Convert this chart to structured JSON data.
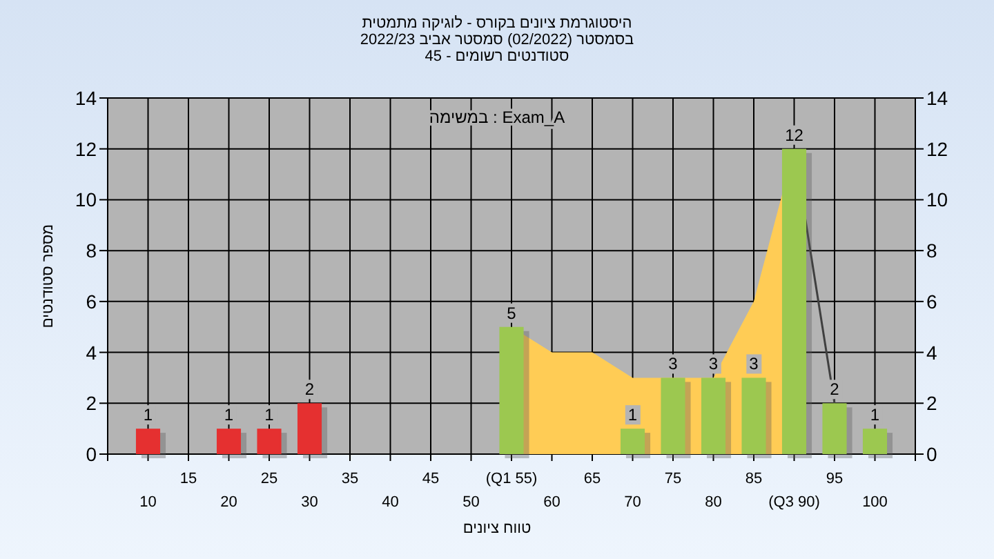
{
  "chart_data": {
    "type": "bar",
    "title": "היסטוגרמת ציונים בקורס - לוגיקה מתמטית",
    "subtitle": "בסמסטר  (02/2022)  סמסטר אביב 2022/23\nסטודנטים רשומים - 45",
    "xlabel": "טווח ציונים",
    "ylabel": "מספר סטודנטים",
    "annotations": [
      "במשימה : Exam_A"
    ],
    "categories": [
      "10",
      "15",
      "20",
      "25",
      "30",
      "35",
      "40",
      "45",
      "50",
      "(Q1 55)",
      "60",
      "65",
      "70",
      "75",
      "80",
      "85",
      "(Q3 90)",
      "95",
      "100"
    ],
    "series": [
      {
        "type": "area",
        "color": "#ffcc55",
        "values": [
          null,
          null,
          null,
          null,
          null,
          null,
          null,
          null,
          null,
          5,
          4,
          4,
          3,
          null,
          3,
          6,
          12,
          null,
          null
        ]
      },
      {
        "type": "line",
        "color": "#404040",
        "values": [
          null,
          null,
          null,
          null,
          null,
          null,
          null,
          null,
          null,
          null,
          null,
          null,
          null,
          null,
          null,
          null,
          12,
          2,
          null
        ]
      },
      {
        "colors": [
          "#e53030",
          "#e53030",
          "#e53030",
          "#e53030",
          "#e53030",
          "#e53030",
          "#e53030",
          "#e53030",
          "#e53030",
          "#9cc850",
          "#9cc850",
          "#9cc850",
          "#9cc850",
          "#9cc850",
          "#9cc850",
          "#9cc850",
          "#9cc850",
          "#9cc850",
          "#9cc850"
        ],
        "values": [
          1,
          0,
          1,
          1,
          2,
          0,
          0,
          0,
          0,
          5,
          0,
          0,
          1,
          3,
          3,
          3,
          12,
          2,
          1
        ],
        "value_labels": [
          "1",
          null,
          "1",
          "1",
          "2",
          null,
          null,
          null,
          null,
          "5",
          null,
          null,
          "1",
          "3",
          "3",
          "3",
          "12",
          "2",
          "1"
        ]
      }
    ],
    "ylim": [
      0,
      14
    ],
    "yticks": [
      0,
      2,
      4,
      6,
      8,
      10,
      12,
      14
    ],
    "y2lim": [
      0,
      14
    ],
    "y2ticks": [
      0,
      2,
      4,
      6,
      8,
      10,
      12,
      14
    ],
    "grid": true,
    "marker": "none"
  }
}
